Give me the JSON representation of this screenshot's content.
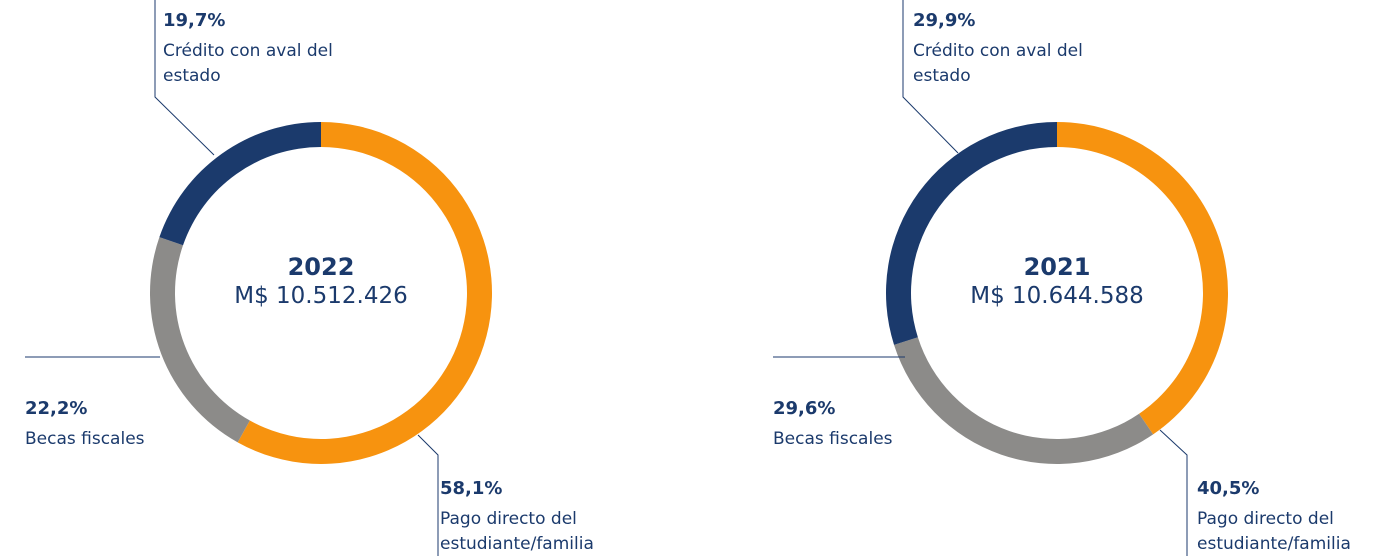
{
  "chart_data": [
    {
      "type": "pie",
      "donut": true,
      "center_label": "2022",
      "center_value": "M$ 10.512.426",
      "categories": [
        "Pago directo del estudiante/familia",
        "Becas fiscales",
        "Crédito con aval del estado"
      ],
      "values": [
        58.1,
        22.2,
        19.7
      ],
      "value_labels": [
        "58,1%",
        "22,2%",
        "19,7%"
      ],
      "colors": [
        "#f7930f",
        "#8c8b89",
        "#1b3a6c"
      ]
    },
    {
      "type": "pie",
      "donut": true,
      "center_label": "2021",
      "center_value": "M$ 10.644.588",
      "categories": [
        "Pago directo del estudiante/familia",
        "Becas fiscales",
        "Crédito con aval del estado"
      ],
      "values": [
        40.5,
        29.6,
        29.9
      ],
      "value_labels": [
        "40,5%",
        "29,6%",
        "29,9%"
      ],
      "colors": [
        "#f7930f",
        "#8c8b89",
        "#1b3a6c"
      ]
    }
  ]
}
